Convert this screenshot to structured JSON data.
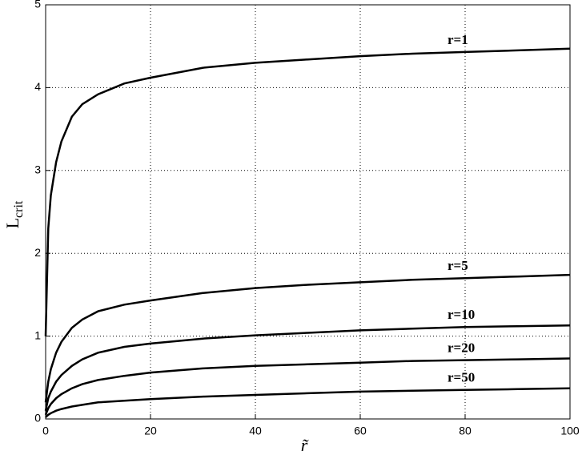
{
  "chart_data": {
    "type": "line",
    "xlabel": "r̃",
    "ylabel": {
      "base": "L",
      "sub": "crit"
    },
    "x": [
      0,
      0.5,
      1,
      2,
      3,
      5,
      7,
      10,
      15,
      20,
      30,
      40,
      50,
      60,
      70,
      80,
      90,
      100
    ],
    "series": [
      {
        "name": "r=1",
        "color": "#000000",
        "values": [
          1.0,
          2.3,
          2.7,
          3.1,
          3.35,
          3.65,
          3.8,
          3.92,
          4.05,
          4.12,
          4.24,
          4.3,
          4.34,
          4.38,
          4.41,
          4.43,
          4.45,
          4.47
        ]
      },
      {
        "name": "r=5",
        "color": "#000000",
        "values": [
          0.2,
          0.45,
          0.6,
          0.8,
          0.93,
          1.1,
          1.2,
          1.3,
          1.38,
          1.43,
          1.52,
          1.58,
          1.62,
          1.65,
          1.68,
          1.7,
          1.72,
          1.74
        ]
      },
      {
        "name": "r=10",
        "color": "#000000",
        "values": [
          0.1,
          0.25,
          0.33,
          0.45,
          0.53,
          0.64,
          0.72,
          0.8,
          0.87,
          0.91,
          0.97,
          1.01,
          1.04,
          1.07,
          1.09,
          1.11,
          1.12,
          1.13
        ]
      },
      {
        "name": "r=20",
        "color": "#000000",
        "values": [
          0.05,
          0.13,
          0.18,
          0.25,
          0.3,
          0.37,
          0.42,
          0.47,
          0.52,
          0.56,
          0.61,
          0.64,
          0.66,
          0.68,
          0.7,
          0.71,
          0.72,
          0.73
        ]
      },
      {
        "name": "r=50",
        "color": "#000000",
        "values": [
          0.02,
          0.05,
          0.07,
          0.1,
          0.12,
          0.15,
          0.17,
          0.2,
          0.22,
          0.24,
          0.27,
          0.29,
          0.31,
          0.33,
          0.34,
          0.35,
          0.36,
          0.37
        ]
      }
    ],
    "xlim": [
      0,
      100
    ],
    "xticks": [
      0,
      20,
      40,
      60,
      80,
      100
    ],
    "ylim": [
      0,
      5
    ],
    "yticks": [
      0,
      1,
      2,
      3,
      4,
      5
    ],
    "grid": true
  }
}
